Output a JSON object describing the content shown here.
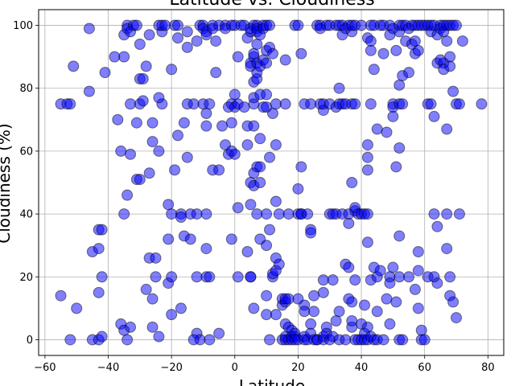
{
  "chart_data": {
    "type": "scatter",
    "title": "Latitude vs. Cloudiness",
    "xlabel": "Latitude",
    "ylabel": "Cloudiness (%)",
    "xlim": [
      -62,
      85
    ],
    "ylim": [
      -5,
      105
    ],
    "xticks": [
      -60,
      -40,
      -20,
      0,
      20,
      40,
      60,
      80
    ],
    "yticks": [
      0,
      20,
      40,
      60,
      80,
      100
    ],
    "grid": true,
    "marker_fill": "#0000ff",
    "marker_edge": "#000000",
    "marker_alpha": 0.5,
    "points": [
      [
        -55,
        75
      ],
      [
        -53,
        75
      ],
      [
        -52,
        75
      ],
      [
        -55,
        14
      ],
      [
        -50,
        10
      ],
      [
        -52,
        0
      ],
      [
        -51,
        87
      ],
      [
        -46,
        99
      ],
      [
        -46,
        79
      ],
      [
        -45,
        28
      ],
      [
        -45,
        0
      ],
      [
        -43,
        35
      ],
      [
        -42,
        35
      ],
      [
        -43,
        29
      ],
      [
        -43,
        15
      ],
      [
        -42,
        20
      ],
      [
        -41,
        85
      ],
      [
        -43,
        0
      ],
      [
        -42,
        1
      ],
      [
        -38,
        90
      ],
      [
        -37,
        70
      ],
      [
        -36,
        5
      ],
      [
        -35,
        3
      ],
      [
        -36,
        60
      ],
      [
        -35,
        97
      ],
      [
        -35,
        90
      ],
      [
        -34,
        100
      ],
      [
        -34,
        99
      ],
      [
        -33,
        98
      ],
      [
        -32,
        100
      ],
      [
        -31,
        100
      ],
      [
        -35,
        40
      ],
      [
        -34,
        46
      ],
      [
        -33,
        59
      ],
      [
        -34,
        0
      ],
      [
        -33,
        4
      ],
      [
        -33,
        75
      ],
      [
        -31,
        69
      ],
      [
        -31,
        51
      ],
      [
        -30,
        51
      ],
      [
        -30,
        83
      ],
      [
        -29,
        83
      ],
      [
        -30,
        94
      ],
      [
        -30,
        75
      ],
      [
        -29,
        76
      ],
      [
        -28,
        87
      ],
      [
        -28,
        16
      ],
      [
        -27,
        97
      ],
      [
        -27,
        53
      ],
      [
        -27,
        26
      ],
      [
        -26,
        63
      ],
      [
        -26,
        69
      ],
      [
        -25,
        26
      ],
      [
        -26,
        13
      ],
      [
        -25,
        20
      ],
      [
        -26,
        4
      ],
      [
        -24,
        1
      ],
      [
        -24,
        100
      ],
      [
        -23,
        98
      ],
      [
        -23,
        75
      ],
      [
        -24,
        77
      ],
      [
        -24,
        60
      ],
      [
        -23,
        100
      ],
      [
        -22,
        100
      ],
      [
        -21,
        18
      ],
      [
        -20,
        20
      ],
      [
        -21,
        32
      ],
      [
        -21,
        43
      ],
      [
        -20,
        40
      ],
      [
        -20,
        8
      ],
      [
        -20,
        86
      ],
      [
        -19,
        54
      ],
      [
        -19,
        100
      ],
      [
        -18,
        100
      ],
      [
        -18,
        96
      ],
      [
        -18,
        65
      ],
      [
        -17,
        40
      ],
      [
        -17,
        39
      ],
      [
        -17,
        10
      ],
      [
        -16,
        69
      ],
      [
        -16,
        33
      ],
      [
        -15,
        75
      ],
      [
        -15,
        58
      ],
      [
        -15,
        98
      ],
      [
        -15,
        93
      ],
      [
        -14,
        40
      ],
      [
        -14,
        32
      ],
      [
        -13,
        75
      ],
      [
        -12,
        95
      ],
      [
        -12,
        40
      ],
      [
        -12,
        2
      ],
      [
        -12,
        20
      ],
      [
        -11,
        0
      ],
      [
        -13,
        0
      ],
      [
        -11,
        100
      ],
      [
        -10,
        100
      ],
      [
        -10,
        75
      ],
      [
        -10,
        99
      ],
      [
        -9,
        98
      ],
      [
        -9,
        72
      ],
      [
        -9,
        97
      ],
      [
        -8,
        75
      ],
      [
        -9,
        68
      ],
      [
        -9,
        29
      ],
      [
        -9,
        20
      ],
      [
        -9,
        40
      ],
      [
        -8,
        20
      ],
      [
        -8,
        0
      ],
      [
        -7,
        100
      ],
      [
        -7,
        99
      ],
      [
        -7,
        54
      ],
      [
        -6,
        95
      ],
      [
        -6,
        85
      ],
      [
        -5,
        2
      ],
      [
        -5,
        54
      ],
      [
        -5,
        100
      ],
      [
        -4,
        68
      ],
      [
        -3,
        62
      ],
      [
        -3,
        100
      ],
      [
        -3,
        99
      ],
      [
        -2,
        59
      ],
      [
        -2,
        74
      ],
      [
        -1,
        75
      ],
      [
        -1,
        60
      ],
      [
        -1,
        32
      ],
      [
        -1,
        69
      ],
      [
        -1,
        100
      ],
      [
        0,
        74
      ],
      [
        0,
        100
      ],
      [
        0,
        78
      ],
      [
        0,
        59
      ],
      [
        1,
        75
      ],
      [
        1,
        20
      ],
      [
        1,
        42
      ],
      [
        1,
        90
      ],
      [
        2,
        100
      ],
      [
        3,
        74
      ],
      [
        3,
        100
      ],
      [
        4,
        96
      ],
      [
        4,
        62
      ],
      [
        4,
        28
      ],
      [
        4,
        68
      ],
      [
        5,
        88
      ],
      [
        5,
        87
      ],
      [
        5,
        98
      ],
      [
        5,
        99
      ],
      [
        5,
        50
      ],
      [
        5,
        43
      ],
      [
        5,
        20
      ],
      [
        5,
        20
      ],
      [
        6,
        100
      ],
      [
        6,
        90
      ],
      [
        6,
        91
      ],
      [
        6,
        75
      ],
      [
        6,
        77
      ],
      [
        6,
        53
      ],
      [
        6,
        49
      ],
      [
        6,
        10
      ],
      [
        6,
        82
      ],
      [
        6,
        68
      ],
      [
        7,
        94
      ],
      [
        7,
        100
      ],
      [
        7,
        99
      ],
      [
        7,
        88
      ],
      [
        7,
        98
      ],
      [
        7,
        55
      ],
      [
        7,
        40
      ],
      [
        7,
        83
      ],
      [
        7,
        85
      ],
      [
        8,
        78
      ],
      [
        8,
        55
      ],
      [
        8,
        87
      ],
      [
        8,
        64
      ],
      [
        8,
        32
      ],
      [
        8,
        50
      ],
      [
        8,
        97
      ],
      [
        9,
        100
      ],
      [
        9,
        99
      ],
      [
        9,
        89
      ],
      [
        9,
        74
      ],
      [
        10,
        78
      ],
      [
        10,
        74
      ],
      [
        10,
        92
      ],
      [
        10,
        100
      ],
      [
        10,
        88
      ],
      [
        10,
        30
      ],
      [
        10,
        14
      ],
      [
        10,
        8
      ],
      [
        10,
        40
      ],
      [
        11,
        93
      ],
      [
        11,
        100
      ],
      [
        11,
        58
      ],
      [
        11,
        35
      ],
      [
        11,
        0
      ],
      [
        12,
        91
      ],
      [
        12,
        72
      ],
      [
        12,
        20
      ],
      [
        12,
        21
      ],
      [
        13,
        22
      ],
      [
        13,
        75
      ],
      [
        13,
        62
      ],
      [
        13,
        44
      ],
      [
        13,
        26
      ],
      [
        13,
        8
      ],
      [
        14,
        24
      ],
      [
        14,
        40
      ],
      [
        15,
        11
      ],
      [
        15,
        13
      ],
      [
        15,
        0
      ],
      [
        16,
        89
      ],
      [
        16,
        75
      ],
      [
        16,
        5
      ],
      [
        16,
        12
      ],
      [
        16,
        13
      ],
      [
        16,
        0
      ],
      [
        16,
        1
      ],
      [
        17,
        4
      ],
      [
        17,
        40
      ],
      [
        17,
        13
      ],
      [
        17,
        0
      ],
      [
        18,
        3
      ],
      [
        18,
        1
      ],
      [
        18,
        0
      ],
      [
        19,
        100
      ],
      [
        19,
        1
      ],
      [
        19,
        2
      ],
      [
        19,
        0
      ],
      [
        20,
        100
      ],
      [
        20,
        48
      ],
      [
        20,
        40
      ],
      [
        20,
        13
      ],
      [
        20,
        0
      ],
      [
        21,
        91
      ],
      [
        21,
        55
      ],
      [
        21,
        40
      ],
      [
        21,
        40
      ],
      [
        22,
        75
      ],
      [
        22,
        11
      ],
      [
        22,
        9
      ],
      [
        22,
        0
      ],
      [
        22,
        1
      ],
      [
        23,
        40
      ],
      [
        23,
        0
      ],
      [
        24,
        75
      ],
      [
        24,
        35
      ],
      [
        24,
        34
      ],
      [
        24,
        5
      ],
      [
        24,
        2
      ],
      [
        25,
        14
      ],
      [
        25,
        9
      ],
      [
        25,
        0
      ],
      [
        26,
        100
      ],
      [
        26,
        0
      ],
      [
        26,
        0
      ],
      [
        27,
        100
      ],
      [
        27,
        75
      ],
      [
        27,
        99
      ],
      [
        28,
        73
      ],
      [
        28,
        75
      ],
      [
        28,
        19
      ],
      [
        28,
        15
      ],
      [
        28,
        1
      ],
      [
        28,
        0
      ],
      [
        29,
        100
      ],
      [
        29,
        4
      ],
      [
        29,
        2
      ],
      [
        30,
        100
      ],
      [
        30,
        75
      ],
      [
        30,
        40
      ],
      [
        30,
        0
      ],
      [
        31,
        40
      ],
      [
        31,
        19
      ],
      [
        31,
        1
      ],
      [
        32,
        100
      ],
      [
        32,
        74
      ],
      [
        32,
        40
      ],
      [
        32,
        6
      ],
      [
        33,
        100
      ],
      [
        33,
        75
      ],
      [
        33,
        80
      ],
      [
        33,
        9
      ],
      [
        33,
        0
      ],
      [
        34,
        100
      ],
      [
        34,
        75
      ],
      [
        34,
        97
      ],
      [
        34,
        40
      ],
      [
        35,
        75
      ],
      [
        35,
        99
      ],
      [
        35,
        24
      ],
      [
        35,
        0
      ],
      [
        36,
        100
      ],
      [
        36,
        40
      ],
      [
        36,
        13
      ],
      [
        36,
        37
      ],
      [
        36,
        23
      ],
      [
        37,
        100
      ],
      [
        37,
        75
      ],
      [
        37,
        98
      ],
      [
        37,
        50
      ],
      [
        37,
        12
      ],
      [
        37,
        4
      ],
      [
        37,
        6
      ],
      [
        38,
        100
      ],
      [
        38,
        75
      ],
      [
        38,
        41
      ],
      [
        38,
        42
      ],
      [
        38,
        19
      ],
      [
        38,
        0
      ],
      [
        39,
        40
      ],
      [
        39,
        0
      ],
      [
        40,
        100
      ],
      [
        40,
        40
      ],
      [
        40,
        5
      ],
      [
        40,
        0
      ],
      [
        41,
        40
      ],
      [
        41,
        11
      ],
      [
        41,
        0
      ],
      [
        41,
        2
      ],
      [
        42,
        96
      ],
      [
        42,
        62
      ],
      [
        42,
        58
      ],
      [
        42,
        54
      ],
      [
        42,
        40
      ],
      [
        42,
        31
      ],
      [
        42,
        4
      ],
      [
        42,
        0
      ],
      [
        43,
        100
      ],
      [
        43,
        95
      ],
      [
        43,
        92
      ],
      [
        43,
        75
      ],
      [
        43,
        19
      ],
      [
        43,
        1
      ],
      [
        44,
        100
      ],
      [
        44,
        86
      ],
      [
        44,
        23
      ],
      [
        44,
        0
      ],
      [
        45,
        67
      ],
      [
        45,
        20
      ],
      [
        45,
        9
      ],
      [
        45,
        0
      ],
      [
        46,
        100
      ],
      [
        46,
        22
      ],
      [
        47,
        100
      ],
      [
        47,
        91
      ],
      [
        47,
        0
      ],
      [
        48,
        66
      ],
      [
        48,
        13
      ],
      [
        49,
        100
      ],
      [
        49,
        97
      ],
      [
        49,
        20
      ],
      [
        49,
        18
      ],
      [
        49,
        5
      ],
      [
        50,
        99
      ],
      [
        50,
        75
      ],
      [
        50,
        74
      ],
      [
        50,
        23
      ],
      [
        50,
        71
      ],
      [
        51,
        92
      ],
      [
        51,
        12
      ],
      [
        51,
        55
      ],
      [
        52,
        100
      ],
      [
        52,
        98
      ],
      [
        52,
        81
      ],
      [
        52,
        75
      ],
      [
        52,
        61
      ],
      [
        52,
        33
      ],
      [
        52,
        20
      ],
      [
        52,
        0
      ],
      [
        53,
        100
      ],
      [
        53,
        84
      ],
      [
        53,
        75
      ],
      [
        53,
        0
      ],
      [
        54,
        100
      ],
      [
        54,
        95
      ],
      [
        55,
        99
      ],
      [
        55,
        85
      ],
      [
        55,
        20
      ],
      [
        56,
        100
      ],
      [
        56,
        94
      ],
      [
        57,
        100
      ],
      [
        57,
        95
      ],
      [
        57,
        91
      ],
      [
        57,
        16
      ],
      [
        58,
        100
      ],
      [
        58,
        92
      ],
      [
        58,
        10
      ],
      [
        58,
        22
      ],
      [
        58,
        28
      ],
      [
        59,
        100
      ],
      [
        59,
        3
      ],
      [
        59,
        0
      ],
      [
        60,
        100
      ],
      [
        60,
        0
      ],
      [
        61,
        100
      ],
      [
        61,
        75
      ],
      [
        61,
        20
      ],
      [
        62,
        100
      ],
      [
        62,
        98
      ],
      [
        62,
        75
      ],
      [
        63,
        100
      ],
      [
        63,
        71
      ],
      [
        63,
        40
      ],
      [
        63,
        20
      ],
      [
        64,
        88
      ],
      [
        64,
        97
      ],
      [
        64,
        36
      ],
      [
        64,
        18
      ],
      [
        65,
        100
      ],
      [
        65,
        99
      ],
      [
        65,
        89
      ],
      [
        66,
        100
      ],
      [
        66,
        98
      ],
      [
        66,
        88
      ],
      [
        66,
        86
      ],
      [
        67,
        100
      ],
      [
        67,
        95
      ],
      [
        67,
        67
      ],
      [
        67,
        40
      ],
      [
        67,
        29
      ],
      [
        68,
        100
      ],
      [
        68,
        87
      ],
      [
        68,
        90
      ],
      [
        68,
        20
      ],
      [
        68,
        14
      ],
      [
        69,
        100
      ],
      [
        69,
        79
      ],
      [
        69,
        12
      ],
      [
        70,
        100
      ],
      [
        70,
        75
      ],
      [
        70,
        7
      ],
      [
        71,
        75
      ],
      [
        71,
        40
      ],
      [
        72,
        95
      ],
      [
        78,
        75
      ]
    ]
  }
}
